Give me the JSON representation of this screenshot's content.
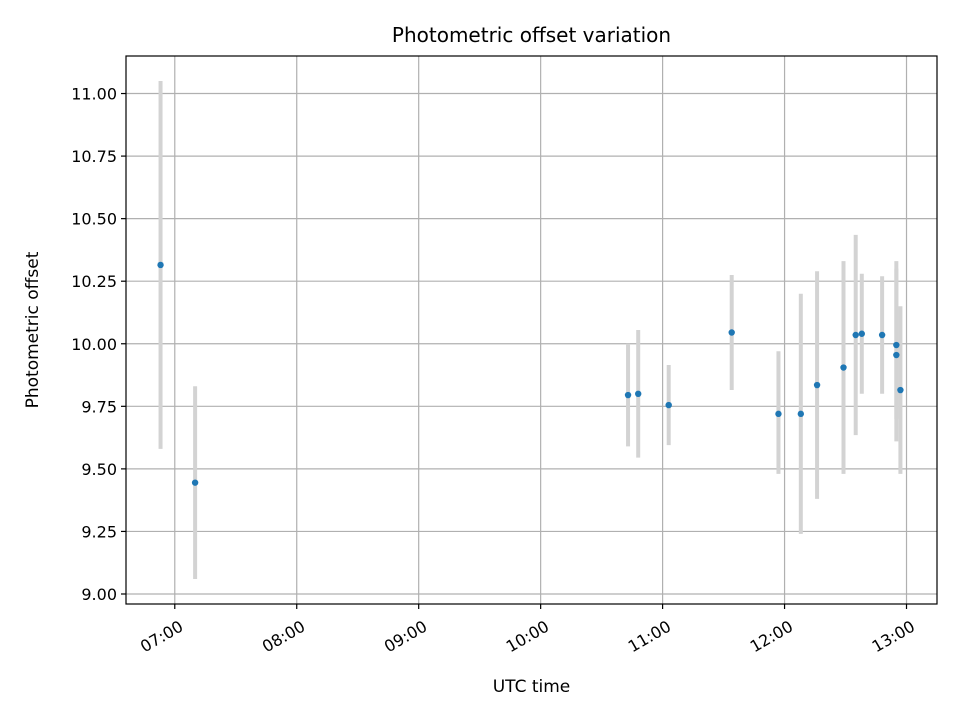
{
  "chart_data": {
    "type": "scatter",
    "title": "Photometric offset variation",
    "xlabel": "UTC time",
    "ylabel": "Photometric offset",
    "xlim": [
      "06:36",
      "13:15"
    ],
    "ylim": [
      8.96,
      11.15
    ],
    "x_ticks": [
      "07:00",
      "08:00",
      "09:00",
      "10:00",
      "11:00",
      "12:00",
      "13:00"
    ],
    "y_ticks": [
      "9.00",
      "9.25",
      "9.50",
      "9.75",
      "10.00",
      "10.25",
      "10.50",
      "10.75",
      "11.00"
    ],
    "grid": true,
    "colors": {
      "point": "#1f77b4",
      "errorbar": "#d3d3d3",
      "grid": "#b0b0b0"
    },
    "points": [
      {
        "x": "06:53",
        "y": 10.315,
        "ylow": 9.58,
        "yhigh": 11.05
      },
      {
        "x": "07:10",
        "y": 9.445,
        "ylow": 9.06,
        "yhigh": 9.83
      },
      {
        "x": "10:43",
        "y": 9.795,
        "ylow": 9.59,
        "yhigh": 10.0
      },
      {
        "x": "10:48",
        "y": 9.8,
        "ylow": 9.545,
        "yhigh": 10.055
      },
      {
        "x": "11:03",
        "y": 9.755,
        "ylow": 9.595,
        "yhigh": 9.915
      },
      {
        "x": "11:34",
        "y": 10.045,
        "ylow": 9.815,
        "yhigh": 10.275
      },
      {
        "x": "11:57",
        "y": 9.72,
        "ylow": 9.48,
        "yhigh": 9.97
      },
      {
        "x": "12:08",
        "y": 9.72,
        "ylow": 9.24,
        "yhigh": 10.2
      },
      {
        "x": "12:16",
        "y": 9.835,
        "ylow": 9.38,
        "yhigh": 10.29
      },
      {
        "x": "12:29",
        "y": 9.905,
        "ylow": 9.48,
        "yhigh": 10.33
      },
      {
        "x": "12:35",
        "y": 10.035,
        "ylow": 9.635,
        "yhigh": 10.435
      },
      {
        "x": "12:38",
        "y": 10.04,
        "ylow": 9.8,
        "yhigh": 10.28
      },
      {
        "x": "12:48",
        "y": 10.035,
        "ylow": 9.8,
        "yhigh": 10.27
      },
      {
        "x": "12:55",
        "y": 9.995,
        "ylow": 9.7,
        "yhigh": 10.33
      },
      {
        "x": "12:55",
        "y": 9.955,
        "ylow": 9.61,
        "yhigh": 10.3
      },
      {
        "x": "12:57",
        "y": 9.815,
        "ylow": 9.48,
        "yhigh": 10.15
      }
    ]
  }
}
